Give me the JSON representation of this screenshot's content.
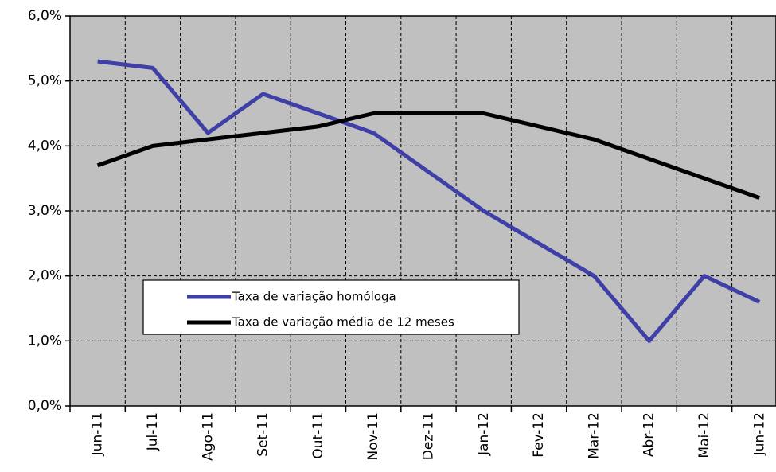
{
  "chart_data": {
    "type": "line",
    "categories": [
      "Jun-11",
      "Jul-11",
      "Ago-11",
      "Set-11",
      "Out-11",
      "Nov-11",
      "Dez-11",
      "Jan-12",
      "Fev-12",
      "Mar-12",
      "Abr-12",
      "Mai-12",
      "Jun-12"
    ],
    "series": [
      {
        "name": "Taxa de variação homóloga",
        "color": "#3f3fa8",
        "values": [
          5.3,
          5.2,
          4.2,
          4.8,
          4.5,
          4.2,
          3.6,
          3.0,
          2.5,
          2.0,
          1.0,
          2.0,
          1.6
        ]
      },
      {
        "name": "Taxa de variação média de 12 meses",
        "color": "#000000",
        "values": [
          3.7,
          4.0,
          4.1,
          4.2,
          4.3,
          4.5,
          4.5,
          4.5,
          4.3,
          4.1,
          3.8,
          3.5,
          3.2
        ]
      }
    ],
    "ylim": [
      0,
      6
    ],
    "yticks": [
      {
        "value": 0,
        "label": "0,0%"
      },
      {
        "value": 1,
        "label": "1,0%"
      },
      {
        "value": 2,
        "label": "2,0%"
      },
      {
        "value": 3,
        "label": "3,0%"
      },
      {
        "value": 4,
        "label": "4,0%"
      },
      {
        "value": 5,
        "label": "5,0%"
      },
      {
        "value": 6,
        "label": "6,0%"
      }
    ],
    "grid": true
  }
}
